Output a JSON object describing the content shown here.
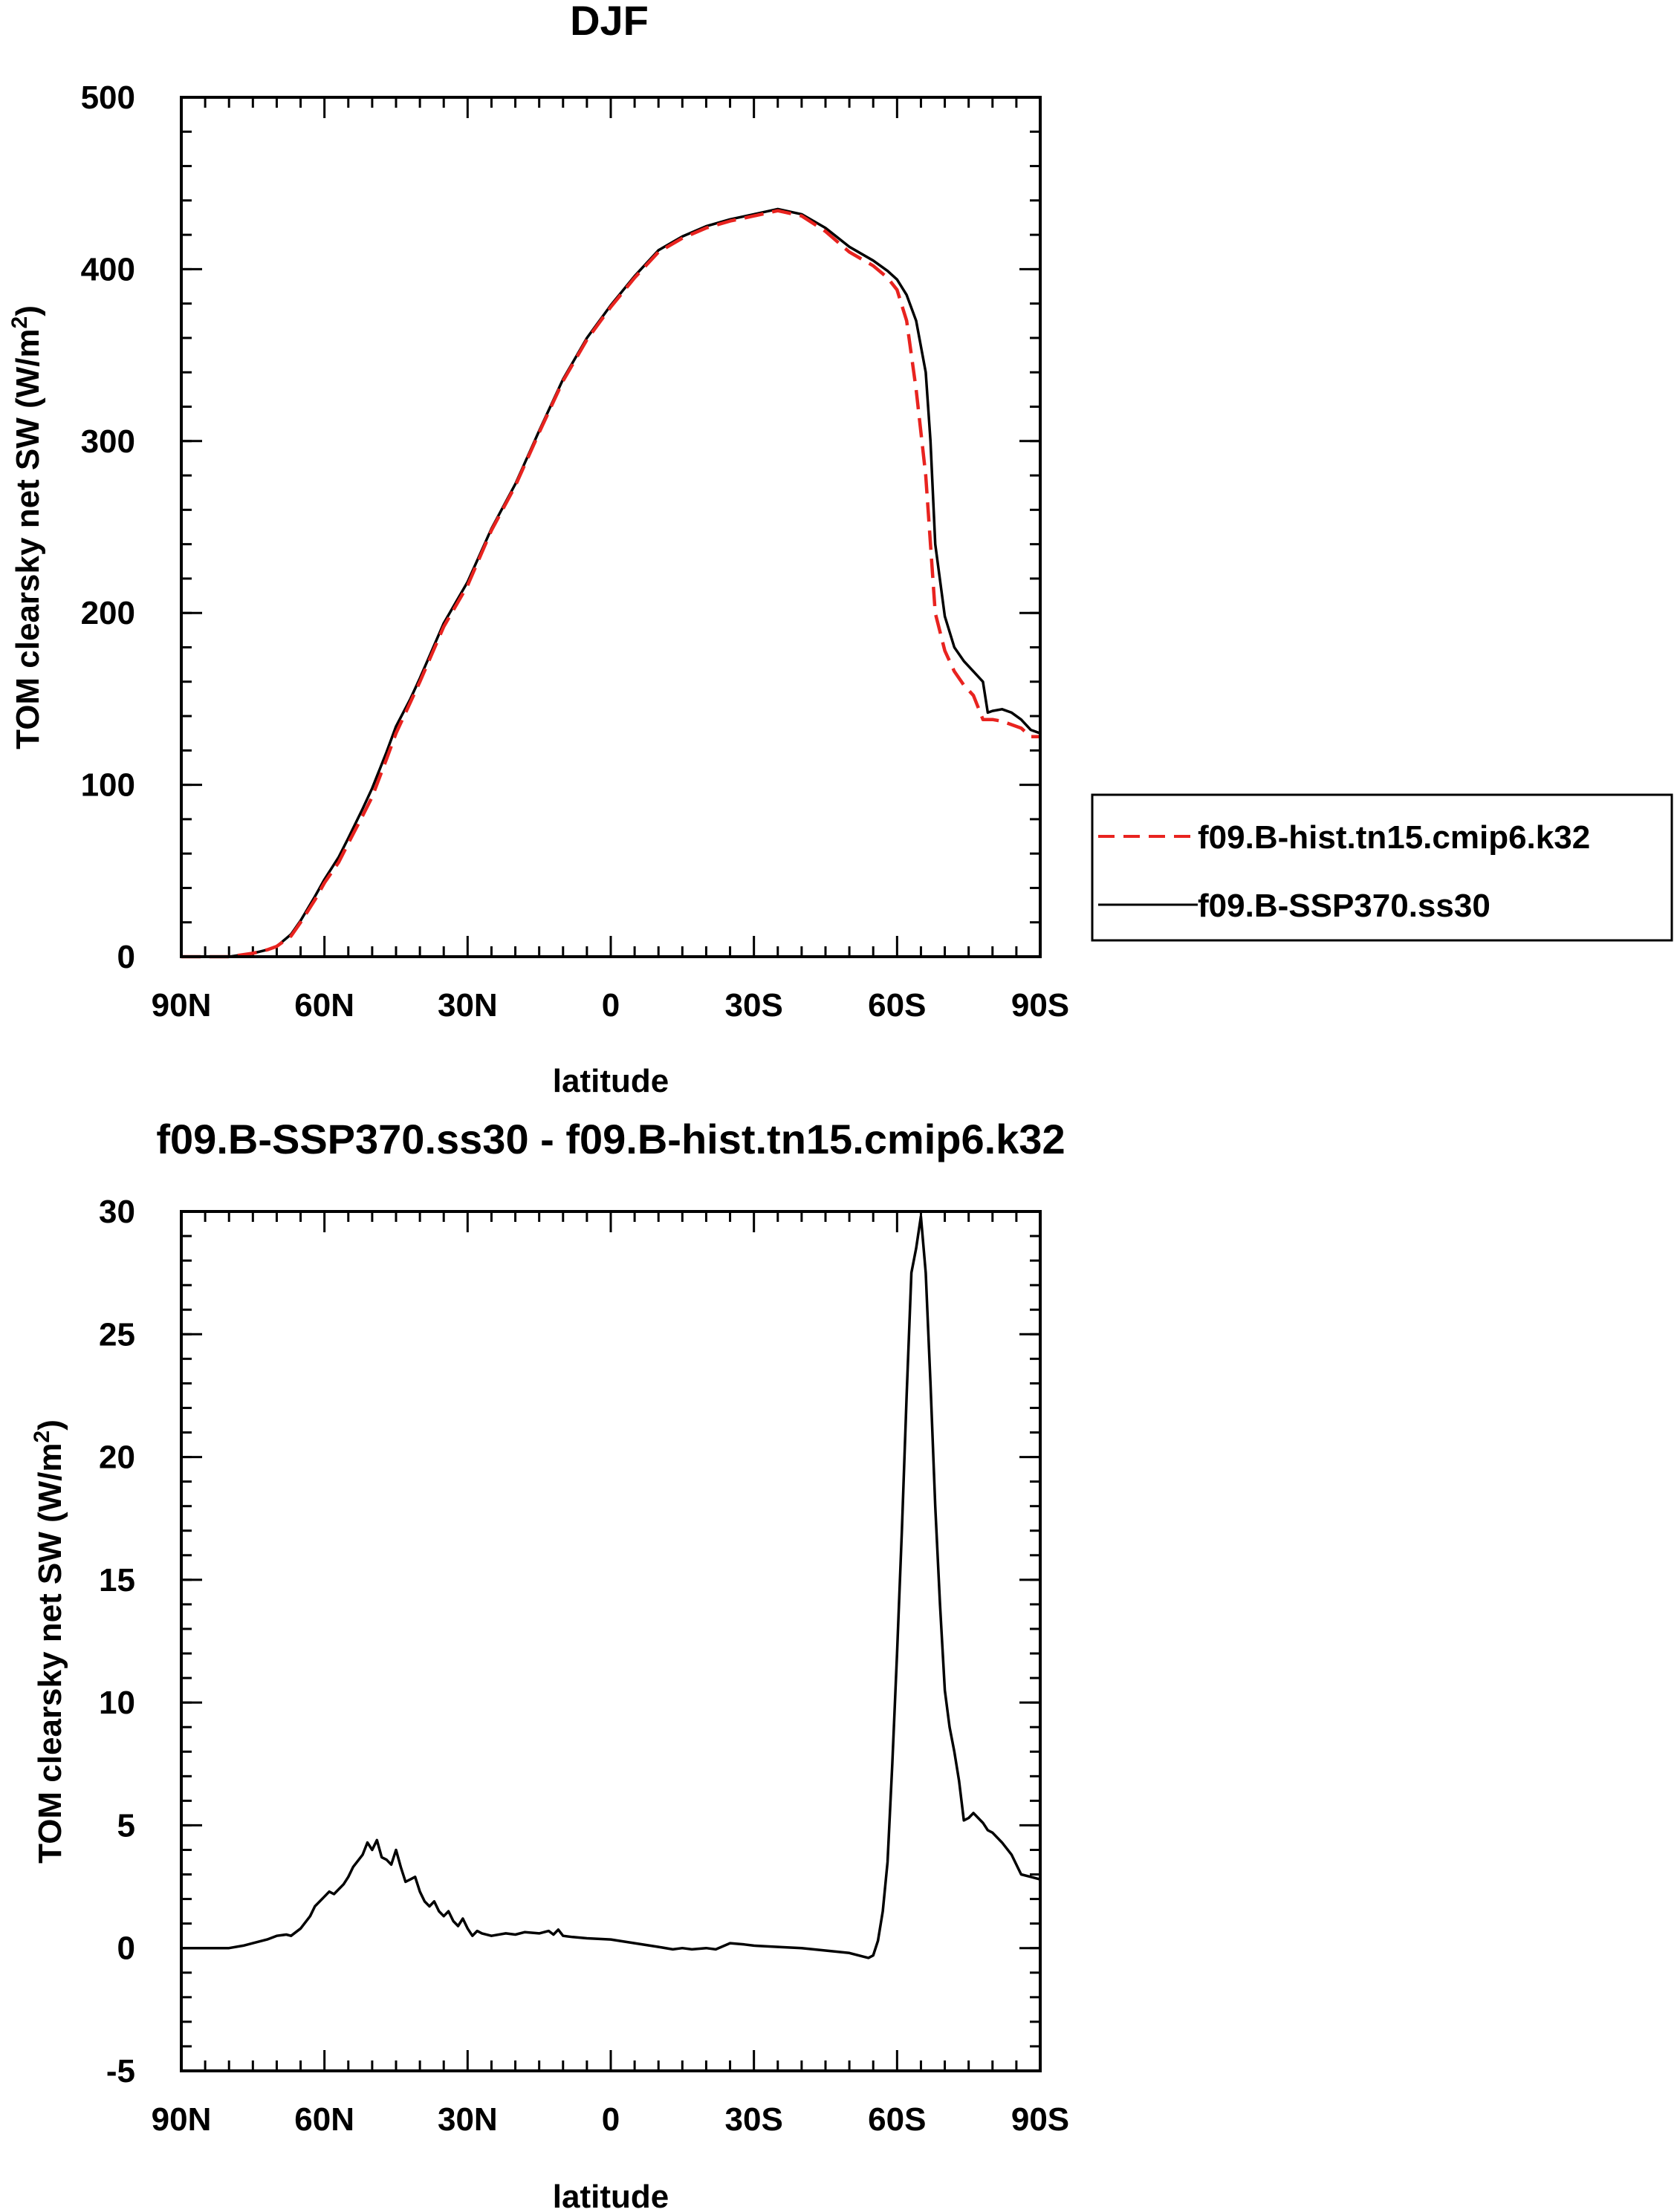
{
  "chart_data": [
    {
      "type": "line",
      "title": "DJF",
      "xlabel": "latitude",
      "ylabel_main": "TOM clearsky net SW (W/m",
      "ylabel_sup": "2",
      "ylabel_close": ")",
      "xlim": [
        90,
        -90
      ],
      "ylim": [
        0,
        500
      ],
      "x_ticks": [
        {
          "value": 90,
          "label": "90N"
        },
        {
          "value": 60,
          "label": "60N"
        },
        {
          "value": 30,
          "label": "30N"
        },
        {
          "value": 0,
          "label": "0"
        },
        {
          "value": -30,
          "label": "30S"
        },
        {
          "value": -60,
          "label": "60S"
        },
        {
          "value": -90,
          "label": "90S"
        }
      ],
      "y_ticks": [
        {
          "value": 0,
          "label": "0"
        },
        {
          "value": 100,
          "label": "100"
        },
        {
          "value": 200,
          "label": "200"
        },
        {
          "value": 300,
          "label": "300"
        },
        {
          "value": 400,
          "label": "400"
        },
        {
          "value": 500,
          "label": "500"
        }
      ],
      "legend": {
        "placement": "right",
        "entries": [
          "f09.B-hist.tn15.cmip6.k32",
          "f09.B-SSP370.ss30"
        ]
      },
      "series": [
        {
          "name": "f09.B-hist.tn15.cmip6.k32",
          "color": "#e8231f",
          "style": "dashed",
          "x": [
            90,
            85,
            80,
            75,
            72,
            70,
            67,
            65,
            62,
            60,
            57,
            55,
            52,
            50,
            47,
            45,
            42,
            40,
            35,
            30,
            25,
            20,
            15,
            10,
            5,
            0,
            -5,
            -10,
            -15,
            -20,
            -25,
            -30,
            -35,
            -40,
            -45,
            -50,
            -55,
            -58,
            -60,
            -62,
            -64,
            -66,
            -67,
            -68,
            -70,
            -72,
            -74,
            -76,
            -78,
            -79,
            -80,
            -82,
            -84,
            -86,
            -88,
            -90
          ],
          "y": [
            0,
            0,
            0,
            2,
            4,
            6,
            12,
            20,
            33,
            43,
            55,
            66,
            82,
            93,
            115,
            130,
            148,
            160,
            192,
            216,
            248,
            274,
            305,
            335,
            359,
            378,
            395,
            410,
            418,
            424,
            428,
            431,
            434,
            431,
            422,
            410,
            402,
            395,
            388,
            370,
            330,
            280,
            240,
            200,
            178,
            166,
            158,
            152,
            138,
            138,
            138,
            137,
            135,
            133,
            128,
            128
          ]
        },
        {
          "name": "f09.B-SSP370.ss30",
          "color": "#000000",
          "style": "solid",
          "x": [
            90,
            85,
            80,
            75,
            72,
            70,
            67,
            65,
            62,
            60,
            57,
            55,
            52,
            50,
            47,
            45,
            42,
            40,
            35,
            30,
            25,
            20,
            15,
            10,
            5,
            0,
            -5,
            -10,
            -15,
            -20,
            -25,
            -30,
            -35,
            -40,
            -45,
            -50,
            -55,
            -58,
            -60,
            -62,
            -64,
            -66,
            -67,
            -68,
            -70,
            -72,
            -74,
            -76,
            -78,
            -79,
            -80,
            -82,
            -84,
            -86,
            -88,
            -90
          ],
          "y": [
            0,
            0,
            0,
            2,
            4,
            6,
            13,
            21,
            35,
            45,
            58,
            69,
            86,
            98,
            119,
            134,
            150,
            162,
            194,
            218,
            249,
            275,
            306,
            336,
            360,
            379,
            396,
            411,
            419,
            425,
            429,
            432,
            435,
            432,
            424,
            413,
            405,
            399,
            394,
            385,
            370,
            340,
            300,
            240,
            198,
            180,
            172,
            166,
            160,
            142,
            143,
            144,
            142,
            138,
            132,
            130
          ]
        }
      ]
    },
    {
      "type": "line",
      "title": "f09.B-SSP370.ss30 - f09.B-hist.tn15.cmip6.k32",
      "xlabel": "latitude",
      "ylabel_main": "TOM clearsky net SW (W/m",
      "ylabel_sup": "2",
      "ylabel_close": ")",
      "xlim": [
        90,
        -90
      ],
      "ylim": [
        -5,
        30
      ],
      "x_ticks": [
        {
          "value": 90,
          "label": "90N"
        },
        {
          "value": 60,
          "label": "60N"
        },
        {
          "value": 30,
          "label": "30N"
        },
        {
          "value": 0,
          "label": "0"
        },
        {
          "value": -30,
          "label": "30S"
        },
        {
          "value": -60,
          "label": "60S"
        },
        {
          "value": -90,
          "label": "90S"
        }
      ],
      "y_ticks": [
        {
          "value": -5,
          "label": "-5"
        },
        {
          "value": 0,
          "label": "0"
        },
        {
          "value": 5,
          "label": "5"
        },
        {
          "value": 10,
          "label": "10"
        },
        {
          "value": 15,
          "label": "15"
        },
        {
          "value": 20,
          "label": "20"
        },
        {
          "value": 25,
          "label": "25"
        },
        {
          "value": 30,
          "label": "30"
        }
      ],
      "series": [
        {
          "name": "f09.B-SSP370.ss30 - f09.B-hist.tn15.cmip6.k32",
          "color": "#000000",
          "style": "solid",
          "x": [
            90,
            85,
            80,
            77,
            75,
            72,
            70,
            68,
            67,
            65,
            63,
            62,
            60,
            59,
            58,
            56,
            55,
            54,
            52,
            51,
            50,
            49,
            48,
            47,
            46,
            45,
            44,
            43,
            42,
            41,
            40,
            39,
            38,
            37,
            36,
            35,
            34,
            33,
            32,
            31,
            30,
            29,
            28,
            27,
            25,
            22,
            20,
            18,
            15,
            13,
            12,
            11,
            10,
            8,
            5,
            0,
            -5,
            -10,
            -13,
            -15,
            -17,
            -20,
            -22,
            -25,
            -28,
            -30,
            -35,
            -40,
            -45,
            -50,
            -53,
            -54,
            -55,
            -56,
            -57,
            -58,
            -59,
            -60,
            -61,
            -62,
            -63,
            -64,
            -65,
            -66,
            -67,
            -68,
            -69,
            -70,
            -71,
            -72,
            -73,
            -74,
            -75,
            -76,
            -77,
            -78,
            -79,
            -80,
            -82,
            -84,
            -86,
            -88,
            -90
          ],
          "y": [
            0,
            0,
            0,
            0.1,
            0.2,
            0.35,
            0.5,
            0.55,
            0.5,
            0.8,
            1.3,
            1.7,
            2.1,
            2.3,
            2.2,
            2.6,
            2.9,
            3.3,
            3.8,
            4.3,
            4.0,
            4.4,
            3.7,
            3.6,
            3.4,
            4.0,
            3.3,
            2.7,
            2.8,
            2.9,
            2.3,
            1.9,
            1.7,
            1.9,
            1.5,
            1.3,
            1.5,
            1.1,
            0.9,
            1.2,
            0.8,
            0.5,
            0.7,
            0.6,
            0.5,
            0.6,
            0.55,
            0.65,
            0.6,
            0.7,
            0.55,
            0.75,
            0.5,
            0.45,
            0.4,
            0.35,
            0.2,
            0.05,
            -0.05,
            0,
            -0.05,
            0,
            -0.05,
            0.2,
            0.15,
            0.1,
            0.05,
            0,
            -0.1,
            -0.2,
            -0.35,
            -0.4,
            -0.3,
            0.3,
            1.5,
            3.5,
            7.5,
            12,
            17,
            22.5,
            27.5,
            28.5,
            29.8,
            27.5,
            23,
            18,
            14,
            10.5,
            9.0,
            8.0,
            6.8,
            5.2,
            5.3,
            5.5,
            5.3,
            5.1,
            4.8,
            4.7,
            4.3,
            3.8,
            3.0,
            2.9,
            2.8
          ]
        }
      ]
    }
  ]
}
